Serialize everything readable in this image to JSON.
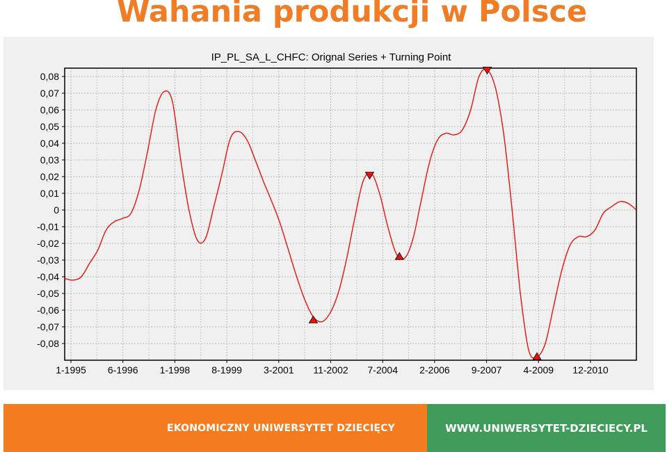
{
  "slide": {
    "title": "Wahania produkcji w Polsce"
  },
  "colors": {
    "title": "#f07c26",
    "footer_left_bg": "#f47b20",
    "footer_right_bg": "#3f9c5a",
    "series_line": "#e8140c",
    "turning_point_fill": "#e8140c"
  },
  "footer": {
    "left_text": "EKONOMICZNY UNIWERSYTET DZIECIĘCY",
    "right_text": "WWW.UNIWERSYTET-DZIECIECY.PL"
  },
  "chart_data": {
    "type": "line",
    "title": "IP_PL_SA_L_CHFC: Orignal Series + Turning Point",
    "xlabel": "",
    "ylabel": "",
    "grid": true,
    "x_tick_labels": [
      "1-1995",
      "6-1996",
      "1-1998",
      "8-1999",
      "3-2001",
      "11-2002",
      "7-2004",
      "2-2006",
      "9-2007",
      "4-2009",
      "12-2010"
    ],
    "y_tick_labels": [
      "0,08",
      "0,07",
      "0,06",
      "0,05",
      "0,04",
      "0,03",
      "0,02",
      "0,01",
      "0",
      "-0,01",
      "-0,02",
      "-0,03",
      "-0,04",
      "-0,05",
      "-0,06",
      "-0,07",
      "-0,08"
    ],
    "ylim": [
      -0.088,
      0.085
    ],
    "xlim": [
      1995.0,
      2012.25
    ],
    "series": [
      {
        "x": [
          1995.0,
          1995.25,
          1995.5,
          1995.75,
          1996.0,
          1996.25,
          1996.5,
          1996.75,
          1997.0,
          1997.25,
          1997.5,
          1997.75,
          1998.0,
          1998.25,
          1998.5,
          1998.75,
          1999.0,
          1999.25,
          1999.5,
          1999.75,
          2000.0,
          2000.25,
          2000.5,
          2000.75,
          2001.0,
          2001.25,
          2001.5,
          2001.75,
          2002.0,
          2002.25,
          2002.5,
          2002.75,
          2003.0,
          2003.25,
          2003.5,
          2003.75,
          2004.0,
          2004.25,
          2004.5,
          2004.75,
          2005.0,
          2005.25,
          2005.5,
          2005.75,
          2006.0,
          2006.25,
          2006.5,
          2006.75,
          2007.0,
          2007.25,
          2007.5,
          2007.75,
          2008.0,
          2008.25,
          2008.5,
          2008.75,
          2009.0,
          2009.25,
          2009.5,
          2009.75,
          2010.0,
          2010.25,
          2010.5,
          2010.75,
          2011.0,
          2011.25,
          2011.5,
          2011.75,
          2012.0,
          2012.25
        ],
        "values": [
          -0.041,
          -0.042,
          -0.04,
          -0.032,
          -0.024,
          -0.012,
          -0.007,
          -0.005,
          -0.002,
          0.012,
          0.035,
          0.06,
          0.071,
          0.065,
          0.03,
          0.0,
          -0.018,
          -0.017,
          0.002,
          0.022,
          0.043,
          0.047,
          0.042,
          0.03,
          0.017,
          0.005,
          -0.008,
          -0.024,
          -0.04,
          -0.054,
          -0.064,
          -0.067,
          -0.062,
          -0.05,
          -0.03,
          -0.005,
          0.017,
          0.022,
          0.01,
          -0.01,
          -0.026,
          -0.029,
          -0.018,
          0.005,
          0.028,
          0.042,
          0.046,
          0.045,
          0.048,
          0.06,
          0.08,
          0.084,
          0.073,
          0.045,
          0.0,
          -0.05,
          -0.084,
          -0.088,
          -0.08,
          -0.058,
          -0.036,
          -0.021,
          -0.016,
          -0.016,
          -0.012,
          -0.002,
          0.002,
          0.005,
          0.004,
          0.0
        ]
      }
    ],
    "turning_points": [
      {
        "x": 2002.5,
        "y": -0.066,
        "kind": "trough"
      },
      {
        "x": 2004.2,
        "y": 0.021,
        "kind": "peak"
      },
      {
        "x": 2005.1,
        "y": -0.028,
        "kind": "trough"
      },
      {
        "x": 2007.75,
        "y": 0.084,
        "kind": "peak"
      },
      {
        "x": 2009.25,
        "y": -0.088,
        "kind": "trough"
      }
    ]
  }
}
